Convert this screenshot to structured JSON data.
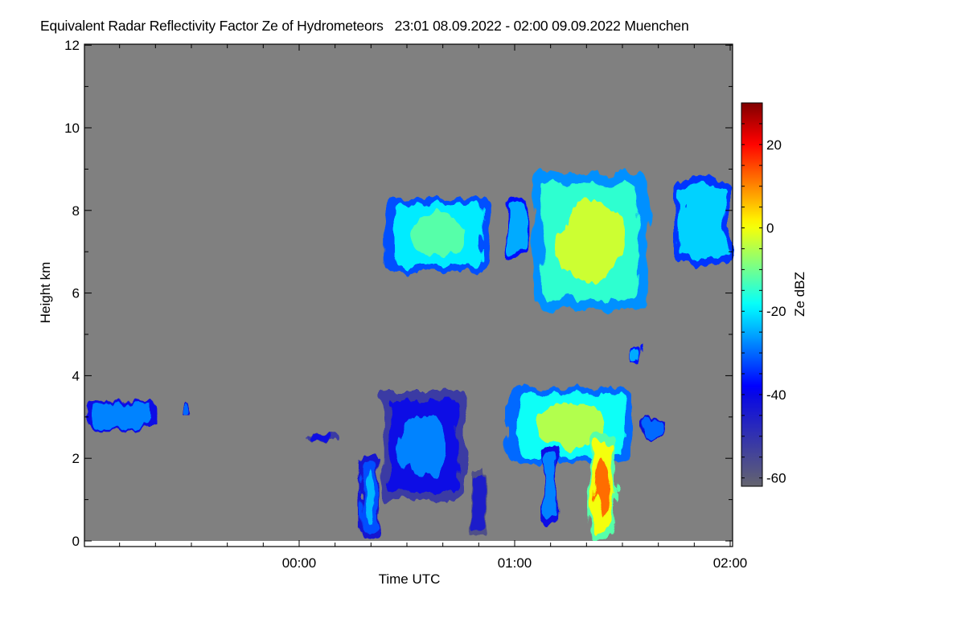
{
  "chart_data": {
    "type": "heatmap",
    "title": "Equivalent Radar Reflectivity Factor Ze of Hydrometeors   23:01 08.09.2022 - 02:00 09.09.2022 Muenchen",
    "xlabel": "Time UTC",
    "ylabel": "Height km",
    "colorbar_label": "Ze dBZ",
    "xlim": [
      "23:01",
      "02:00"
    ],
    "ylim": [
      0,
      12
    ],
    "x_ticks": [
      "00:00",
      "01:00",
      "02:00"
    ],
    "y_ticks": [
      "0",
      "2",
      "4",
      "6",
      "8",
      "10",
      "12"
    ],
    "colorbar_range": [
      -62,
      30
    ],
    "colorbar_ticks": [
      "20",
      "0",
      "-20",
      "-40",
      "-60"
    ],
    "colormap": "jet (grey-blue below -40 dBZ)",
    "background_color": "#808080",
    "echoes": [
      {
        "name": "low-layer-west",
        "start": "23:01",
        "end": "23:20",
        "bottom_km": 2.7,
        "top_km": 3.4,
        "ze_dbz": -28
      },
      {
        "name": "low-fragment-1",
        "start": "23:27",
        "end": "23:30",
        "bottom_km": 3.1,
        "top_km": 3.35,
        "ze_dbz": -30
      },
      {
        "name": "low-fragment-2",
        "start": "00:02",
        "end": "00:10",
        "bottom_km": 2.4,
        "top_km": 2.6,
        "ze_dbz": -40
      },
      {
        "name": "fallstreak-1",
        "start": "00:17",
        "end": "00:22",
        "bottom_km": 0.0,
        "top_km": 2.1,
        "ze_dbz": -32,
        "core_dbz": -24
      },
      {
        "name": "upper-cloud-1",
        "start": "00:24",
        "end": "00:53",
        "bottom_km": 6.5,
        "top_km": 8.3,
        "ze_dbz": -20,
        "core_dbz": -12
      },
      {
        "name": "mid-cloud-1",
        "start": "00:23",
        "end": "00:46",
        "bottom_km": 1.0,
        "top_km": 3.6,
        "ze_dbz": -40,
        "core_dbz": -28
      },
      {
        "name": "fallstreak-2",
        "start": "00:48",
        "end": "00:52",
        "bottom_km": 0.1,
        "top_km": 1.8,
        "ze_dbz": -45
      },
      {
        "name": "upper-cloud-2",
        "start": "00:57",
        "end": "01:04",
        "bottom_km": 6.9,
        "top_km": 8.3,
        "ze_dbz": -25
      },
      {
        "name": "upper-cloud-main",
        "start": "01:05",
        "end": "01:37",
        "bottom_km": 5.6,
        "top_km": 8.9,
        "ze_dbz": -15,
        "core_dbz": -3
      },
      {
        "name": "lower-cloud-main",
        "start": "00:58",
        "end": "01:33",
        "bottom_km": 1.9,
        "top_km": 3.7,
        "ze_dbz": -18,
        "core_dbz": -5
      },
      {
        "name": "fallstreak-3",
        "start": "01:08",
        "end": "01:12",
        "bottom_km": 0.4,
        "top_km": 2.2,
        "ze_dbz": -28
      },
      {
        "name": "rain-shaft",
        "start": "01:21",
        "end": "01:28",
        "bottom_km": 0.0,
        "top_km": 2.6,
        "ze_dbz": 0,
        "core_dbz": 12
      },
      {
        "name": "mid-fragment",
        "start": "01:32",
        "end": "01:35",
        "bottom_km": 4.3,
        "top_km": 4.7,
        "ze_dbz": -25
      },
      {
        "name": "low-fragment-3",
        "start": "01:36",
        "end": "01:42",
        "bottom_km": 2.5,
        "top_km": 3.0,
        "ze_dbz": -30
      },
      {
        "name": "upper-cloud-east",
        "start": "01:45",
        "end": "02:00",
        "bottom_km": 6.7,
        "top_km": 8.8,
        "ze_dbz": -22
      }
    ]
  }
}
